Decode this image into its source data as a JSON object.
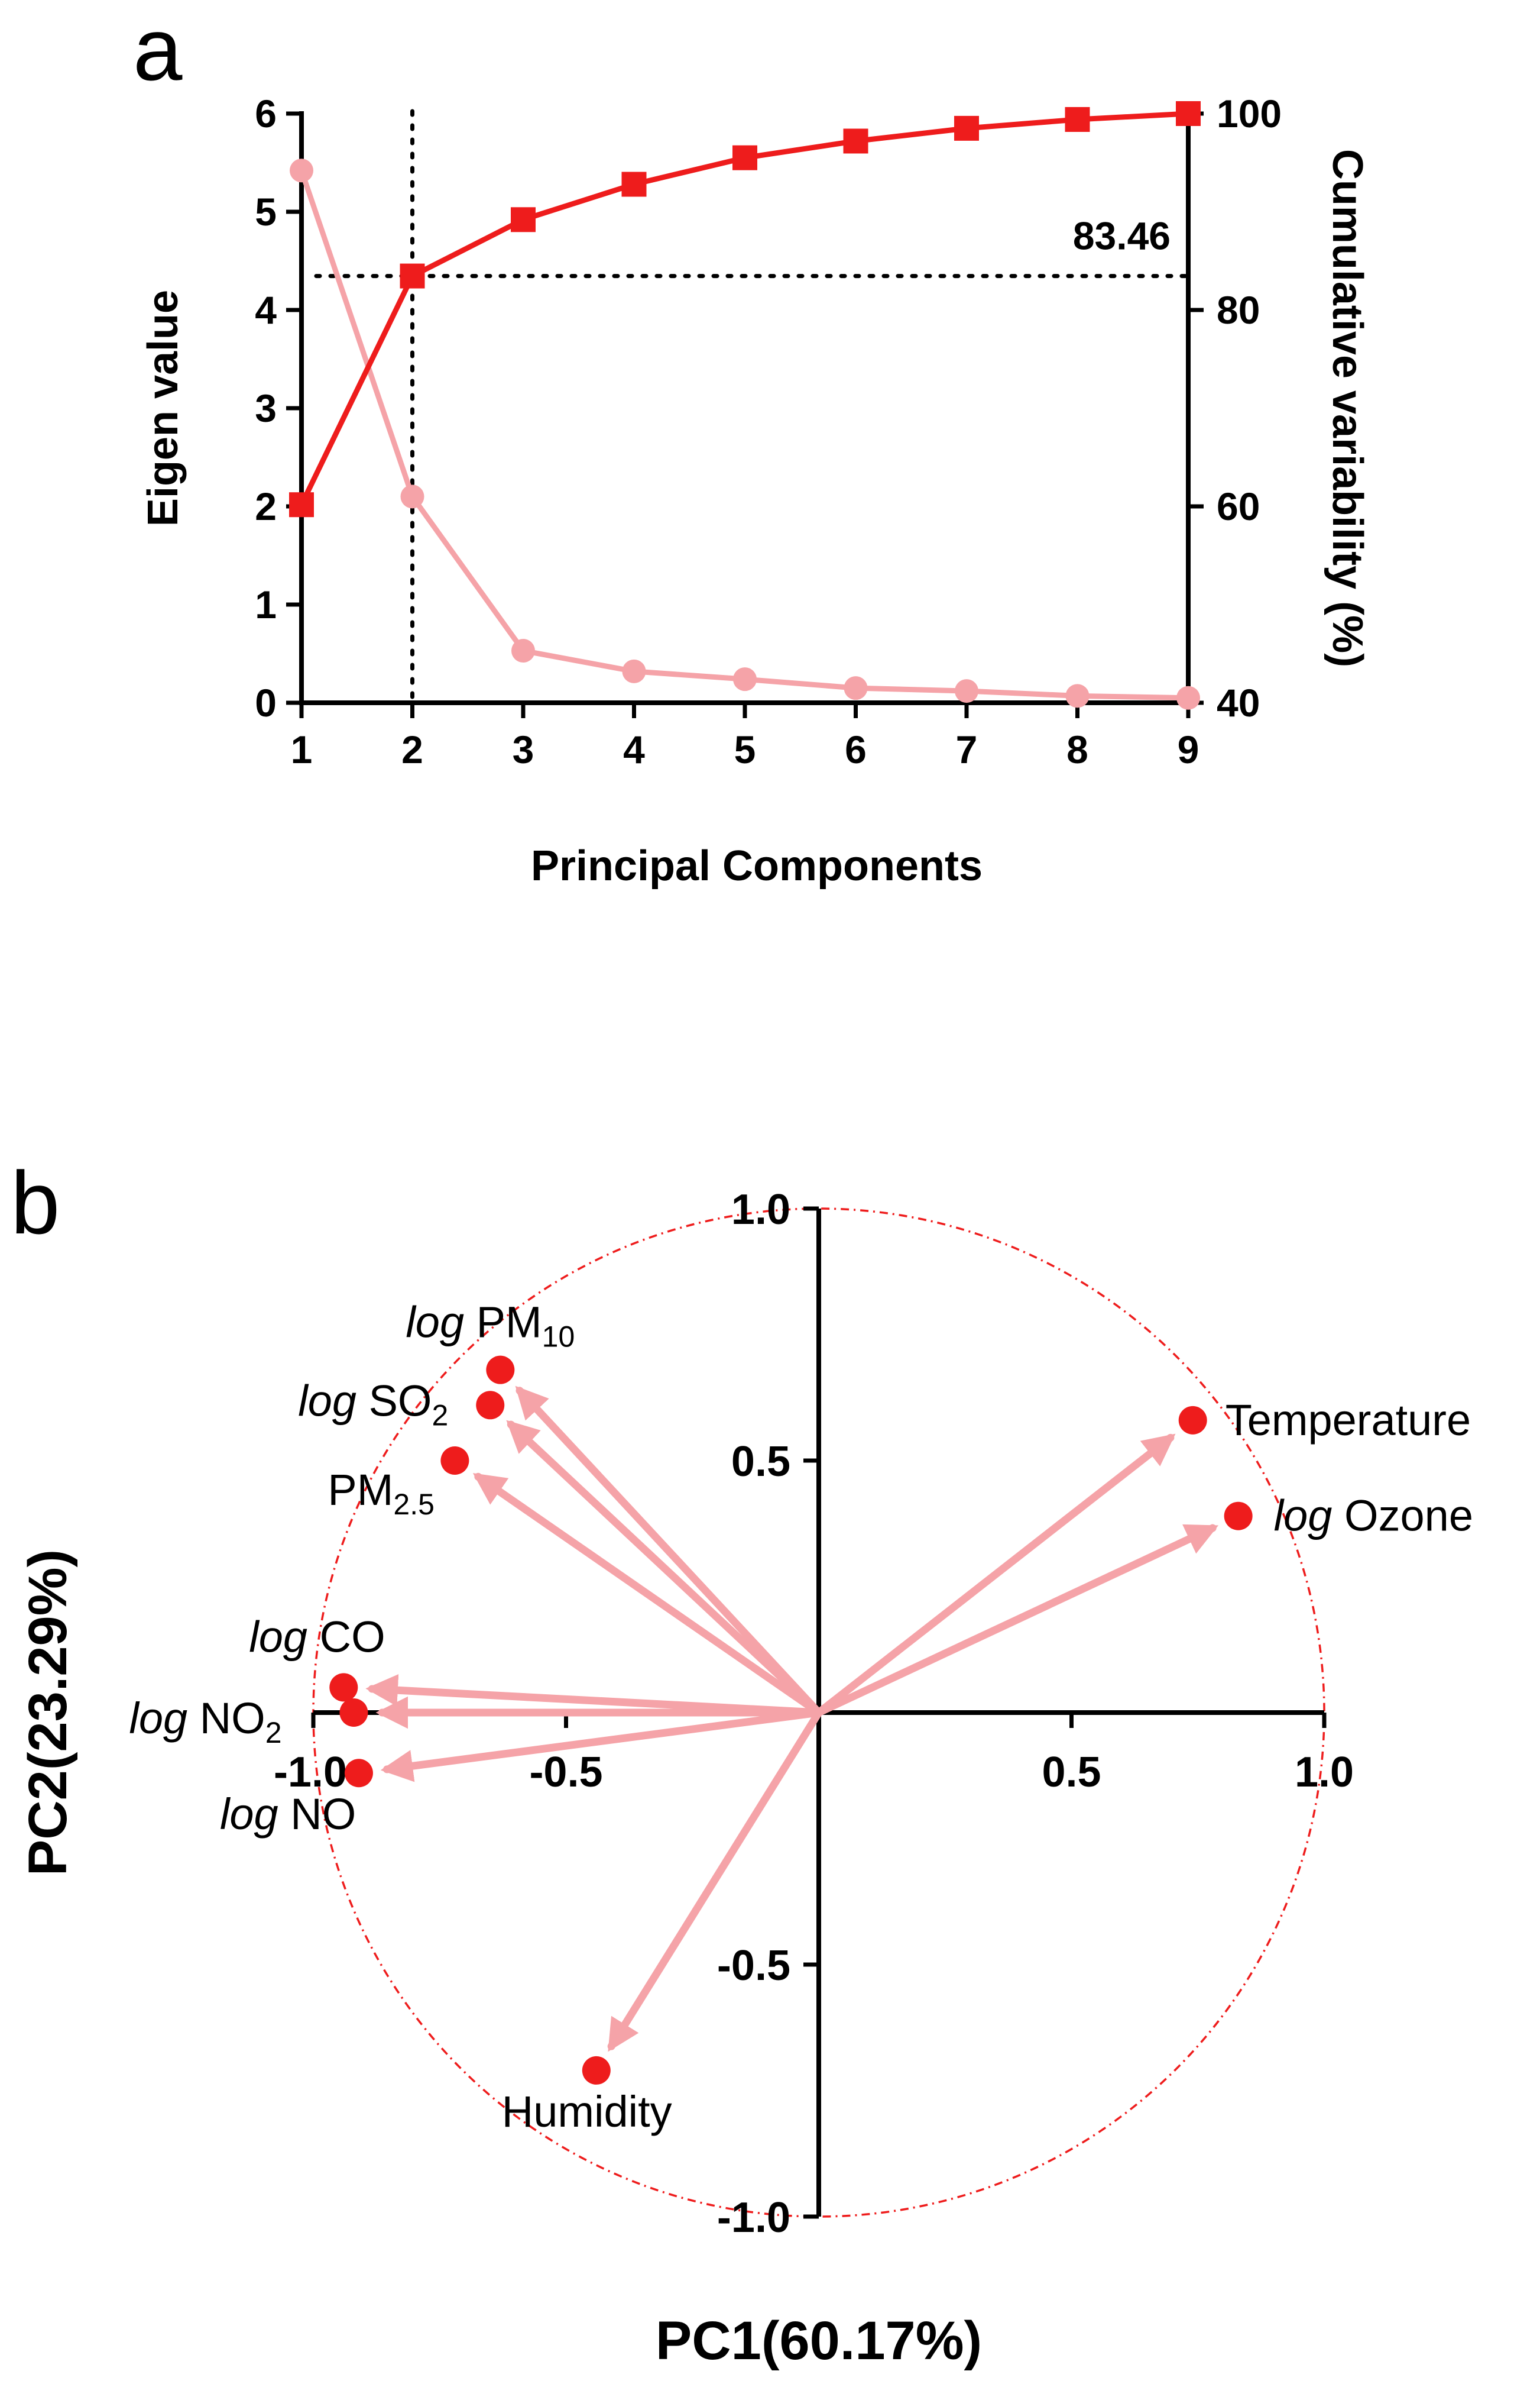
{
  "panel_a": {
    "letter": "a"
  },
  "panel_b": {
    "letter": "b"
  },
  "chart_data": [
    {
      "type": "line",
      "panel": "a",
      "title": "",
      "xlabel": "Principal Components",
      "ylabel": "Eigen value",
      "y2label": "Cumulative variability (%)",
      "x": [
        1,
        2,
        3,
        4,
        5,
        6,
        7,
        8,
        9
      ],
      "xlim": [
        1,
        9
      ],
      "ylim": [
        0,
        6
      ],
      "y2lim": [
        40,
        100
      ],
      "yticks": [
        "0",
        "1",
        "2",
        "3",
        "4",
        "5",
        "6"
      ],
      "y2ticks": [
        "40",
        "60",
        "80",
        "100"
      ],
      "xticks": [
        "1",
        "2",
        "3",
        "4",
        "5",
        "6",
        "7",
        "8",
        "9"
      ],
      "series": [
        {
          "name": "Eigen value",
          "axis": "left",
          "marker": "circle",
          "color": "#f5a3a8",
          "values": [
            5.42,
            2.1,
            0.53,
            0.32,
            0.24,
            0.15,
            0.12,
            0.07,
            0.05
          ]
        },
        {
          "name": "Cumulative variability (%)",
          "axis": "right",
          "marker": "square",
          "color": "#ee1c1c",
          "values": [
            60.17,
            83.46,
            89.2,
            92.8,
            95.5,
            97.2,
            98.5,
            99.4,
            100
          ]
        }
      ],
      "reference": {
        "x": 2,
        "y2": 83.46,
        "label": "83.46"
      }
    },
    {
      "type": "scatter",
      "subtype": "biplot",
      "panel": "b",
      "title": "",
      "xlabel": "PC1(60.17%)",
      "ylabel": "PC2(23.29%)",
      "xlim": [
        -1,
        1
      ],
      "ylim": [
        -1,
        1
      ],
      "xticks": [
        "-1.0",
        "-0.5",
        "0.5",
        "1.0"
      ],
      "yticks": [
        "-1.0",
        "-0.5",
        "0.5",
        "1.0"
      ],
      "unit_circle": true,
      "point_color": "#ee1c1c",
      "arrow_color": "#f5a3a8",
      "variables": [
        {
          "prefix": "log",
          "name": "PM",
          "sub": "10",
          "x": -0.63,
          "y": 0.68
        },
        {
          "prefix": "log",
          "name": "SO",
          "sub": "2",
          "x": -0.65,
          "y": 0.61
        },
        {
          "prefix": "",
          "name": "PM",
          "sub": "2.5",
          "x": -0.72,
          "y": 0.5
        },
        {
          "prefix": "log",
          "name": "CO",
          "sub": "",
          "x": -0.94,
          "y": 0.05
        },
        {
          "prefix": "log",
          "name": "NO",
          "sub": "2",
          "x": -0.92,
          "y": 0.0
        },
        {
          "prefix": "log",
          "name": "NO",
          "sub": "",
          "x": -0.91,
          "y": -0.12
        },
        {
          "prefix": "",
          "name": "Temperature",
          "sub": "",
          "x": 0.74,
          "y": 0.58
        },
        {
          "prefix": "log",
          "name": "Ozone",
          "sub": "",
          "x": 0.83,
          "y": 0.39
        },
        {
          "prefix": "",
          "name": "Humidity",
          "sub": "",
          "x": -0.44,
          "y": -0.71
        }
      ]
    }
  ]
}
